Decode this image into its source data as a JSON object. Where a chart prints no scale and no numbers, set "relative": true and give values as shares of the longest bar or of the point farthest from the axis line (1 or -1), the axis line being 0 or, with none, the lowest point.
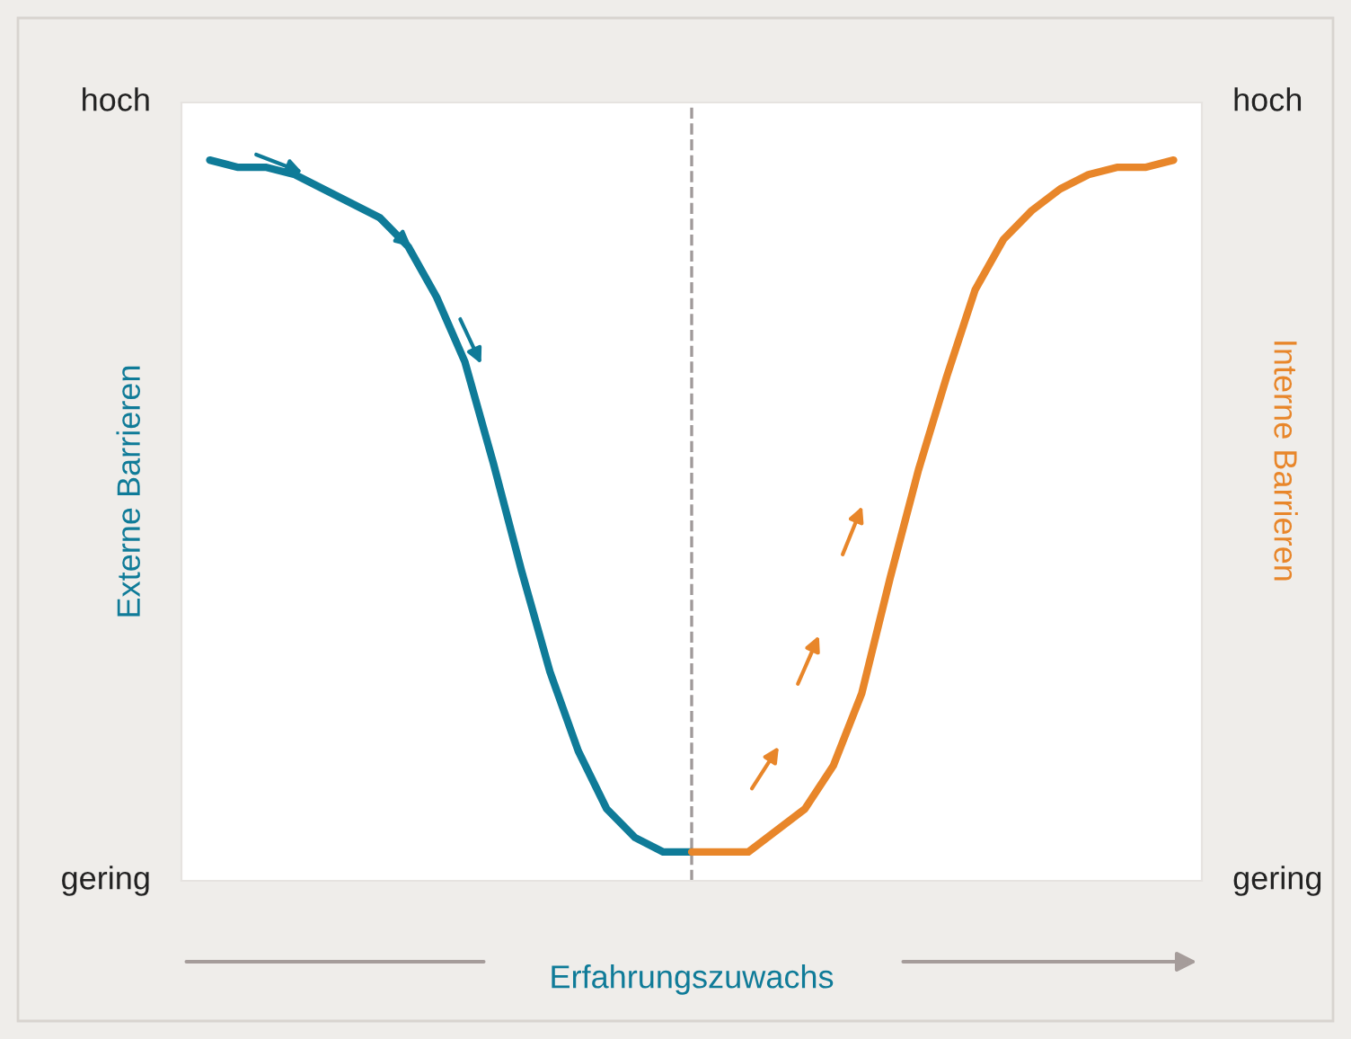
{
  "chart_data": {
    "type": "line",
    "relative": true,
    "xlabel": "Erfahrungszuwachs",
    "ylabel": "Externe Barrieren",
    "y2label": "Interne Barrieren",
    "annotations": [
      "hoch",
      "gering",
      "hoch",
      "gering"
    ],
    "categories": [
      null,
      null,
      null,
      null,
      null,
      null,
      null,
      null,
      null,
      null,
      null,
      null,
      null,
      null,
      null,
      null,
      null,
      null,
      null,
      null,
      null,
      null,
      null,
      null,
      null,
      null,
      null,
      null,
      null,
      null,
      null,
      null,
      null,
      null,
      null
    ],
    "series": [
      {
        "color": "#0f7b98",
        "values": [
          1,
          0.99,
          0.99,
          0.98,
          0.96,
          0.94,
          0.92,
          0.88,
          0.81,
          0.72,
          0.58,
          0.43,
          0.29,
          0.18,
          0.1,
          0.06,
          0.04,
          0.04,
          null,
          null,
          null,
          null,
          null,
          null,
          null,
          null,
          null,
          null,
          null,
          null,
          null,
          null,
          null,
          null,
          null
        ]
      },
      {
        "color": "#e8862a",
        "values": [
          null,
          null,
          null,
          null,
          null,
          null,
          null,
          null,
          null,
          null,
          null,
          null,
          null,
          null,
          null,
          null,
          null,
          0.04,
          0.04,
          0.04,
          0.07,
          0.1,
          0.16,
          0.26,
          0.42,
          0.57,
          0.7,
          0.82,
          0.89,
          0.93,
          0.96,
          0.98,
          0.99,
          0.99,
          1
        ]
      }
    ]
  }
}
